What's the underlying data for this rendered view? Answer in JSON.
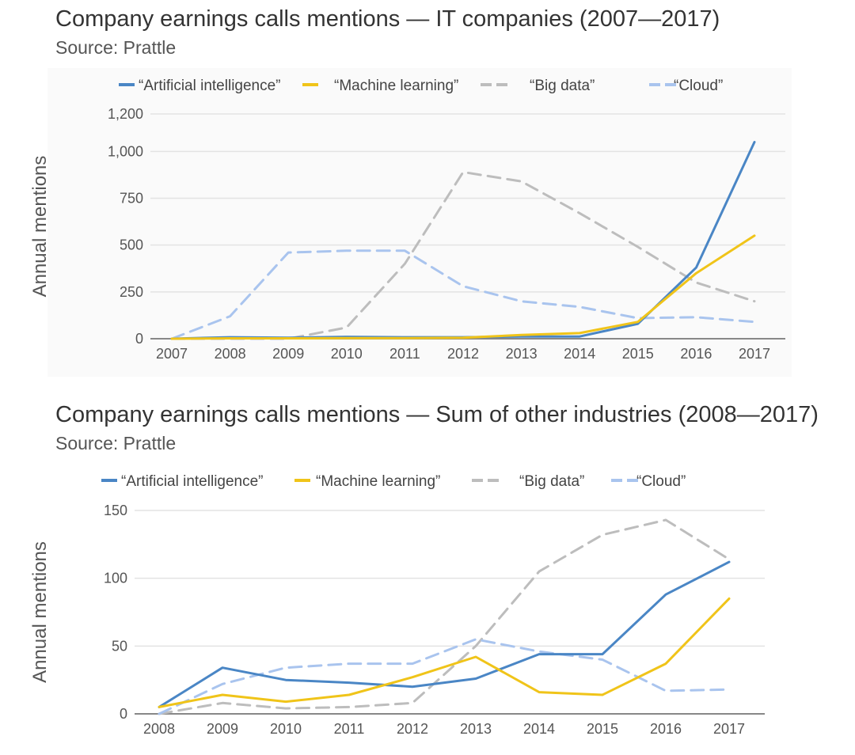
{
  "colors": {
    "ai": "#4a86c5",
    "ml": "#f0c419",
    "bigdata": "#bdbdbd",
    "cloud": "#a9c4ee",
    "grid": "#e3e3e3",
    "axis": "#888888"
  },
  "chart_data": [
    {
      "type": "line",
      "title": "Company earnings calls mentions — IT companies (2007—2017)",
      "subtitle": "Source: Prattle",
      "ylabel": "Annual mentions",
      "xlabel": "",
      "categories": [
        "2007",
        "2008",
        "2009",
        "2010",
        "2011",
        "2012",
        "2013",
        "2014",
        "2015",
        "2016",
        "2017"
      ],
      "y_ticks": [
        0,
        250,
        500,
        750,
        1000,
        1200
      ],
      "y_tick_labels": [
        "0",
        "250",
        "500",
        "750",
        "1,000",
        "1,200"
      ],
      "ylim": [
        0,
        1200
      ],
      "legend_position": "top",
      "grid": true,
      "series": [
        {
          "name": "“Artificial intelligence”",
          "color_key": "ai",
          "dashed": false,
          "values": [
            0,
            8,
            5,
            10,
            8,
            8,
            12,
            12,
            80,
            380,
            1050
          ]
        },
        {
          "name": "“Machine learning”",
          "color_key": "ml",
          "dashed": false,
          "values": [
            0,
            2,
            2,
            3,
            3,
            5,
            20,
            30,
            90,
            350,
            550
          ]
        },
        {
          "name": "“Big data”",
          "color_key": "bigdata",
          "dashed": true,
          "values": [
            0,
            0,
            0,
            60,
            400,
            890,
            840,
            670,
            490,
            300,
            200
          ]
        },
        {
          "name": "“Cloud”",
          "color_key": "cloud",
          "dashed": true,
          "values": [
            0,
            120,
            460,
            470,
            470,
            280,
            200,
            170,
            110,
            115,
            90
          ]
        }
      ]
    },
    {
      "type": "line",
      "title": "Company earnings calls mentions — Sum of other industries (2008—2017)",
      "subtitle": "Source: Prattle",
      "ylabel": "Annual mentions",
      "xlabel": "",
      "categories": [
        "2008",
        "2009",
        "2010",
        "2011",
        "2012",
        "2013",
        "2014",
        "2015",
        "2016",
        "2017"
      ],
      "y_ticks": [
        0,
        50,
        100,
        150
      ],
      "y_tick_labels": [
        "0",
        "50",
        "100",
        "150"
      ],
      "ylim": [
        0,
        150
      ],
      "legend_position": "top",
      "grid": true,
      "series": [
        {
          "name": "“Artificial intelligence”",
          "color_key": "ai",
          "dashed": false,
          "values": [
            5,
            34,
            25,
            23,
            20,
            26,
            44,
            44,
            88,
            112
          ]
        },
        {
          "name": "“Machine learning”",
          "color_key": "ml",
          "dashed": false,
          "values": [
            5,
            14,
            9,
            14,
            27,
            42,
            16,
            14,
            37,
            85
          ]
        },
        {
          "name": "“Big data”",
          "color_key": "bigdata",
          "dashed": true,
          "values": [
            0,
            8,
            4,
            5,
            8,
            50,
            105,
            132,
            143,
            114
          ]
        },
        {
          "name": "“Cloud”",
          "color_key": "cloud",
          "dashed": true,
          "values": [
            0,
            22,
            34,
            37,
            37,
            55,
            46,
            40,
            17,
            18
          ]
        }
      ]
    }
  ]
}
